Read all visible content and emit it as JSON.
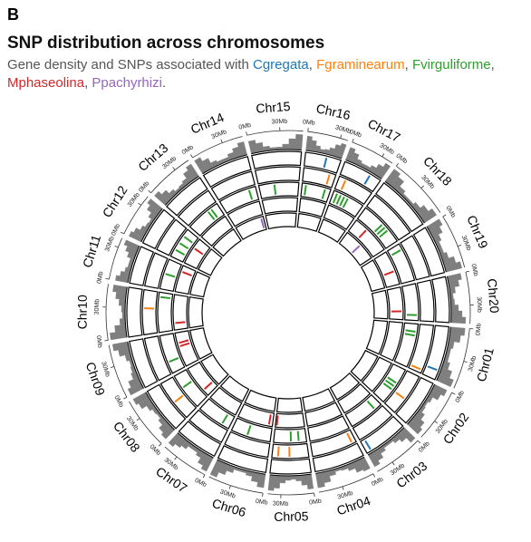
{
  "panel_label": "B",
  "chart_data": {
    "type": "circos",
    "title": "SNP distribution across chromosomes",
    "subtitle": "Gene density and SNPs associated with",
    "subtitle_separators": [
      ", ",
      ", ",
      ", ",
      ", ",
      "."
    ],
    "chromosomes": [
      {
        "name": "Chr01",
        "length": 56
      },
      {
        "name": "Chr02",
        "length": 49
      },
      {
        "name": "Chr03",
        "length": 46
      },
      {
        "name": "Chr04",
        "length": 52
      },
      {
        "name": "Chr05",
        "length": 42
      },
      {
        "name": "Chr06",
        "length": 51
      },
      {
        "name": "Chr07",
        "length": 44
      },
      {
        "name": "Chr08",
        "length": 48
      },
      {
        "name": "Chr09",
        "length": 50
      },
      {
        "name": "Chr10",
        "length": 51
      },
      {
        "name": "Chr11",
        "length": 39
      },
      {
        "name": "Chr12",
        "length": 40
      },
      {
        "name": "Chr13",
        "length": 45
      },
      {
        "name": "Chr14",
        "length": 49
      },
      {
        "name": "Chr15",
        "length": 51
      },
      {
        "name": "Chr16",
        "length": 37
      },
      {
        "name": "Chr17",
        "length": 41
      },
      {
        "name": "Chr18",
        "length": 58
      },
      {
        "name": "Chr19",
        "length": 50
      },
      {
        "name": "Chr20",
        "length": 47
      }
    ],
    "xticks": [
      {
        "value": 0,
        "label": "0Mb"
      },
      {
        "value": 30,
        "label": "30Mb"
      }
    ],
    "density": {
      "color": "#7f7f7f",
      "ylim": [
        0,
        1
      ],
      "values": [
        [
          0.8,
          0.6,
          0.3,
          0.2,
          0.2,
          0.35,
          0.6,
          0.85
        ],
        [
          0.75,
          0.55,
          0.25,
          0.15,
          0.2,
          0.4,
          0.65,
          0.8
        ],
        [
          0.85,
          0.5,
          0.3,
          0.15,
          0.15,
          0.3,
          0.55,
          0.75
        ],
        [
          0.7,
          0.6,
          0.35,
          0.2,
          0.15,
          0.3,
          0.6,
          0.8
        ],
        [
          0.8,
          0.55,
          0.3,
          0.2,
          0.25,
          0.4,
          0.7,
          0.85
        ],
        [
          0.75,
          0.5,
          0.25,
          0.15,
          0.15,
          0.35,
          0.6,
          0.9
        ],
        [
          0.85,
          0.65,
          0.35,
          0.2,
          0.2,
          0.4,
          0.55,
          0.75
        ],
        [
          0.7,
          0.55,
          0.3,
          0.15,
          0.2,
          0.35,
          0.65,
          0.8
        ],
        [
          0.8,
          0.6,
          0.3,
          0.2,
          0.15,
          0.3,
          0.6,
          0.85
        ],
        [
          0.9,
          0.6,
          0.3,
          0.15,
          0.2,
          0.35,
          0.55,
          0.75
        ],
        [
          0.7,
          0.5,
          0.3,
          0.2,
          0.2,
          0.4,
          0.6,
          0.8
        ],
        [
          0.75,
          0.6,
          0.35,
          0.2,
          0.15,
          0.35,
          0.65,
          0.85
        ],
        [
          0.8,
          0.55,
          0.3,
          0.15,
          0.2,
          0.3,
          0.6,
          0.8
        ],
        [
          0.85,
          0.6,
          0.3,
          0.2,
          0.2,
          0.35,
          0.55,
          0.75
        ],
        [
          0.7,
          0.5,
          0.25,
          0.15,
          0.15,
          0.3,
          0.6,
          0.85
        ],
        [
          0.8,
          0.6,
          0.35,
          0.2,
          0.25,
          0.4,
          0.65,
          0.8
        ],
        [
          0.75,
          0.55,
          0.3,
          0.2,
          0.2,
          0.35,
          0.6,
          0.85
        ],
        [
          0.85,
          0.65,
          0.3,
          0.15,
          0.15,
          0.3,
          0.55,
          0.8
        ],
        [
          0.8,
          0.6,
          0.35,
          0.2,
          0.2,
          0.35,
          0.65,
          0.9
        ],
        [
          0.75,
          0.55,
          0.3,
          0.15,
          0.2,
          0.4,
          0.6,
          0.8
        ]
      ]
    },
    "series": [
      {
        "name": "Cgregata",
        "color": "#1f77b4",
        "snps": [
          {
            "chr": "Chr16",
            "pos": 22
          },
          {
            "chr": "Chr17",
            "pos": 29
          },
          {
            "chr": "Chr01",
            "pos": 46
          },
          {
            "chr": "Chr03",
            "pos": 41
          }
        ]
      },
      {
        "name": "Fgraminearum",
        "color": "#ff7f0e",
        "snps": [
          {
            "chr": "Chr16",
            "pos": 30
          },
          {
            "chr": "Chr17",
            "pos": 8
          },
          {
            "chr": "Chr01",
            "pos": 52
          },
          {
            "chr": "Chr02",
            "pos": 30
          },
          {
            "chr": "Chr04",
            "pos": 5
          },
          {
            "chr": "Chr05",
            "pos": 22
          },
          {
            "chr": "Chr05",
            "pos": 35
          },
          {
            "chr": "Chr08",
            "pos": 22
          },
          {
            "chr": "Chr10",
            "pos": 30
          }
        ]
      },
      {
        "name": "Fvirguliforme",
        "color": "#2ca02c",
        "snps": [
          {
            "chr": "Chr16",
            "pos": 5
          },
          {
            "chr": "Chr16",
            "pos": 30
          },
          {
            "chr": "Chr17",
            "pos": 5
          },
          {
            "chr": "Chr17",
            "pos": 10
          },
          {
            "chr": "Chr17",
            "pos": 15
          },
          {
            "chr": "Chr17",
            "pos": 20
          },
          {
            "chr": "Chr18",
            "pos": 30
          },
          {
            "chr": "Chr18",
            "pos": 35
          },
          {
            "chr": "Chr18",
            "pos": 40
          },
          {
            "chr": "Chr19",
            "pos": 8
          },
          {
            "chr": "Chr20",
            "pos": 40
          },
          {
            "chr": "Chr01",
            "pos": 10
          },
          {
            "chr": "Chr01",
            "pos": 15
          },
          {
            "chr": "Chr02",
            "pos": 20
          },
          {
            "chr": "Chr02",
            "pos": 25
          },
          {
            "chr": "Chr02",
            "pos": 30
          },
          {
            "chr": "Chr03",
            "pos": 10
          },
          {
            "chr": "Chr05",
            "pos": 10
          },
          {
            "chr": "Chr05",
            "pos": 20
          },
          {
            "chr": "Chr06",
            "pos": 30
          },
          {
            "chr": "Chr07",
            "pos": 10
          },
          {
            "chr": "Chr08",
            "pos": 30
          },
          {
            "chr": "Chr09",
            "pos": 15
          },
          {
            "chr": "Chr10",
            "pos": 45
          },
          {
            "chr": "Chr11",
            "pos": 20
          },
          {
            "chr": "Chr12",
            "pos": 10
          },
          {
            "chr": "Chr12",
            "pos": 20
          },
          {
            "chr": "Chr12",
            "pos": 30
          },
          {
            "chr": "Chr13",
            "pos": 30
          },
          {
            "chr": "Chr13",
            "pos": 35
          },
          {
            "chr": "Chr14",
            "pos": 40
          },
          {
            "chr": "Chr15",
            "pos": 20
          }
        ]
      },
      {
        "name": "Mphaseolina",
        "color": "#d62728",
        "snps": [
          {
            "chr": "Chr18",
            "pos": 20
          },
          {
            "chr": "Chr19",
            "pos": 30
          },
          {
            "chr": "Chr20",
            "pos": 35
          },
          {
            "chr": "Chr05",
            "pos": 40
          },
          {
            "chr": "Chr06",
            "pos": 5
          },
          {
            "chr": "Chr08",
            "pos": 10
          },
          {
            "chr": "Chr09",
            "pos": 30
          },
          {
            "chr": "Chr09",
            "pos": 35
          },
          {
            "chr": "Chr10",
            "pos": 10
          },
          {
            "chr": "Chr11",
            "pos": 30
          },
          {
            "chr": "Chr12",
            "pos": 25
          }
        ]
      },
      {
        "name": "Ppachyrhizi",
        "color": "#9467bd",
        "snps": [
          {
            "chr": "Chr14",
            "pos": 45
          },
          {
            "chr": "Chr18",
            "pos": 30
          }
        ]
      }
    ]
  }
}
